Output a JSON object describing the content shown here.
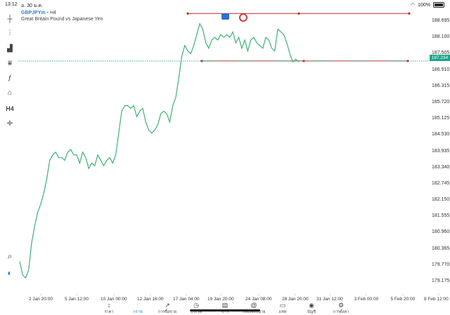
{
  "status_bar": {
    "time": "13:12",
    "date": "อ. 30 ม.ค.",
    "battery": "100%"
  },
  "symbol": {
    "name": "GBPJPYm",
    "separator": "•",
    "timeframe": "H4",
    "description": "Great Britain Pound vs Japanese Yen"
  },
  "left_toolbar": {
    "items": [
      {
        "name": "crosshair-icon",
        "glyph": "┼"
      },
      {
        "name": "chart-type-icon",
        "glyph": "⫶"
      },
      {
        "name": "indicators-icon",
        "glyph": "▟"
      },
      {
        "name": "objects-icon",
        "glyph": "⩸"
      },
      {
        "name": "function-icon",
        "glyph": "ƒ"
      },
      {
        "name": "shapes-icon",
        "glyph": "⌂"
      },
      {
        "name": "timeframe-button",
        "glyph": "H4"
      },
      {
        "name": "crosshair-target-icon",
        "glyph": "✛"
      }
    ],
    "bottom_items": [
      {
        "name": "zoom-search-icon",
        "glyph": "⌕"
      },
      {
        "name": "broker-logo-icon",
        "glyph": "◐"
      }
    ]
  },
  "price_axis": {
    "labels": [
      "188.695",
      "188.100",
      "187.505",
      "186.910",
      "186.315",
      "185.720",
      "185.125",
      "184.530",
      "183.935",
      "183.340",
      "182.745",
      "182.150",
      "181.555",
      "180.960",
      "180.365",
      "179.770",
      "179.175"
    ],
    "current_price": "187.234"
  },
  "time_axis": {
    "labels": [
      "2 Jan 20:00",
      "5 Jan 12:00",
      "10 Jan 00:00",
      "12 Jan 16:00",
      "17 Jan 04:00",
      "19 Jan 20:00",
      "24 Jan 08:00",
      "28 Jan 20:00",
      "31 Jan 12:00",
      "3 Feb 00:00",
      "5 Feb 20:00",
      "8 Feb 12:00"
    ]
  },
  "colors": {
    "line": "#3cb371",
    "hline": "#cc2222",
    "price_tag": "#1aa68a",
    "accent": "#2a7fd4"
  },
  "chart_data": {
    "type": "line",
    "series": [
      {
        "values": [
          179.9,
          179.4,
          179.3,
          179.6,
          180.6,
          181.2,
          181.7,
          182.0,
          182.4,
          182.9,
          183.6,
          183.8,
          183.9,
          183.7,
          183.7,
          183.6,
          183.9,
          184.0,
          183.8,
          183.8,
          183.5,
          183.9,
          183.7,
          183.3,
          183.5,
          183.4,
          183.8,
          183.6,
          183.4,
          183.6,
          183.7,
          183.5,
          183.8,
          184.6,
          185.4,
          185.6,
          185.6,
          185.5,
          185.6,
          185.2,
          185.4,
          185.5,
          185.0,
          184.7,
          184.6,
          184.7,
          184.9,
          185.3,
          185.4,
          185.3,
          185.0,
          185.6,
          185.9,
          186.6,
          187.4,
          187.8,
          187.6,
          187.5,
          187.8,
          188.2,
          188.6,
          188.4,
          187.9,
          187.7,
          188.0,
          188.1,
          188.0,
          188.2,
          188.1,
          188.2,
          188.1,
          188.3,
          187.9,
          188.1,
          187.7,
          188.0,
          187.6,
          188.0,
          188.1,
          187.9,
          187.8,
          187.7,
          188.1,
          188.0,
          187.7,
          187.6,
          188.4,
          188.3,
          188.2,
          187.9,
          187.5,
          187.2,
          187.3,
          187.2
        ]
      }
    ],
    "horizontal_lines": [
      {
        "value": 188.97
      },
      {
        "value": 187.234
      }
    ],
    "ylim": [
      178.9,
      189.0
    ],
    "grid": false
  },
  "tabs": [
    {
      "label": "ราคา",
      "icon": "quotes-icon",
      "glyph": "↕"
    },
    {
      "label": "กราฟ",
      "icon": "chart-icon",
      "glyph": "⫶",
      "active": true
    },
    {
      "label": "การซื้อขาย",
      "icon": "trade-icon",
      "glyph": "↗"
    },
    {
      "label": "ประวัติ",
      "icon": "history-icon",
      "glyph": "◷"
    },
    {
      "label": "ข่าว",
      "icon": "news-icon",
      "glyph": "▤"
    },
    {
      "label": "กล่องจดหมาย",
      "icon": "mailbox-icon",
      "glyph": "@"
    },
    {
      "label": "แชท",
      "icon": "chat-icon",
      "glyph": "▭"
    },
    {
      "label": "บัญชี",
      "icon": "account-icon",
      "glyph": "◉"
    },
    {
      "label": "การตั้งค่า",
      "icon": "settings-icon",
      "glyph": "⚙"
    }
  ]
}
